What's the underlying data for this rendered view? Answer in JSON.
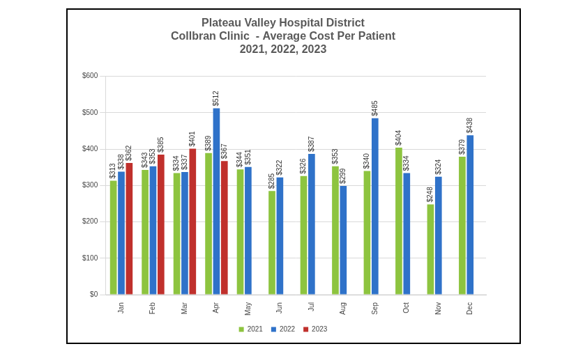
{
  "chart_data": {
    "type": "bar",
    "title": [
      "Plateau Valley Hospital District",
      "Collbran Clinic  - Average Cost Per Patient",
      "2021, 2022, 2023"
    ],
    "categories": [
      "Jan",
      "Feb",
      "Mar",
      "Apr",
      "May",
      "Jun",
      "Jul",
      "Aug",
      "Sep",
      "Oct",
      "Nov",
      "Dec"
    ],
    "series": [
      {
        "name": "2021",
        "color": "#8dc43f",
        "values": [
          313,
          343,
          334,
          389,
          344,
          285,
          326,
          353,
          340,
          404,
          248,
          379
        ],
        "value_labels": [
          "$313",
          "$343",
          "$334",
          "$389",
          "$344",
          "$285",
          "$326",
          "$353",
          "$340",
          "$404",
          "$248",
          "$379"
        ]
      },
      {
        "name": "2022",
        "color": "#2f72c9",
        "values": [
          338,
          353,
          337,
          512,
          351,
          322,
          387,
          299,
          485,
          334,
          324,
          438
        ],
        "value_labels": [
          "$338",
          "$353",
          "$337",
          "$512",
          "$351",
          "$322",
          "$387",
          "$299",
          "$485",
          "$334",
          "$324",
          "$438"
        ]
      },
      {
        "name": "2023",
        "color": "#c0302c",
        "values": [
          362,
          385,
          401,
          367,
          null,
          null,
          null,
          null,
          null,
          null,
          null,
          null
        ],
        "value_labels": [
          "$362",
          "$385",
          "$401",
          "$367",
          null,
          null,
          null,
          null,
          null,
          null,
          null,
          null
        ]
      }
    ],
    "ylim": [
      0,
      600
    ],
    "yticks": [
      {
        "value": 0,
        "label": "$0"
      },
      {
        "value": 100,
        "label": "$100"
      },
      {
        "value": 200,
        "label": "$200"
      },
      {
        "value": 300,
        "label": "$300"
      },
      {
        "value": 400,
        "label": "$400"
      },
      {
        "value": 500,
        "label": "$500"
      },
      {
        "value": 600,
        "label": "$600"
      }
    ],
    "grid": true,
    "legend": "bottom",
    "data_labels": true
  }
}
